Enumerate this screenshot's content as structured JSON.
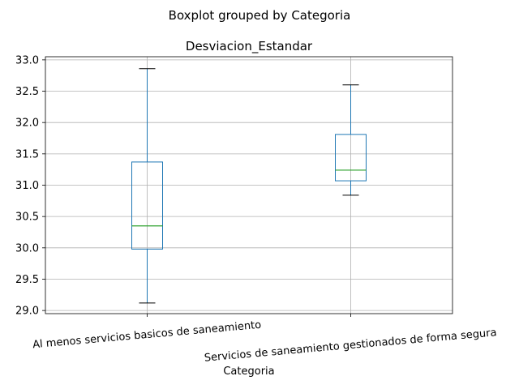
{
  "chart_data": {
    "type": "boxplot",
    "suptitle": "Boxplot grouped by Categoria",
    "title": "Desviacion_Estandar",
    "xlabel": "Categoria",
    "ylabel": "",
    "ylim": [
      28.95,
      33.05
    ],
    "yticks": [
      29.0,
      29.5,
      30.0,
      30.5,
      31.0,
      31.5,
      32.0,
      32.5,
      33.0
    ],
    "ytick_labels": [
      "29.0",
      "29.5",
      "30.0",
      "30.5",
      "31.0",
      "31.5",
      "32.0",
      "32.5",
      "33.0"
    ],
    "grid": true,
    "categories": [
      "Al menos servicios basicos de saneamiento",
      "Servicios de saneamiento gestionados de forma segura"
    ],
    "boxes": [
      {
        "whisker_low": 29.12,
        "q1": 29.98,
        "median": 30.35,
        "q3": 31.37,
        "whisker_high": 32.86
      },
      {
        "whisker_low": 30.84,
        "q1": 31.07,
        "median": 31.24,
        "q3": 31.81,
        "whisker_high": 32.6
      }
    ],
    "colors": {
      "box": "#1f77b4",
      "median": "#2ca02c",
      "cap": "#000000",
      "grid": "#b0b0b0"
    }
  }
}
